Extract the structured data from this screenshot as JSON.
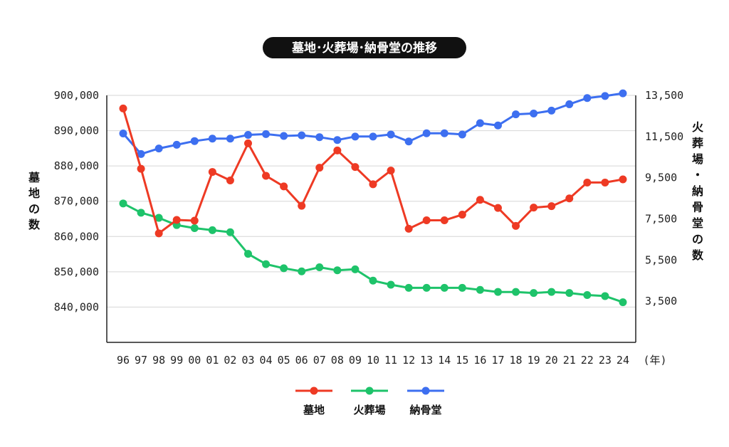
{
  "chart_data": {
    "type": "line",
    "title": "墓地･火葬場･納骨堂の推移",
    "xlabel": "(年)",
    "ylabel_left": "墓地の数",
    "ylabel_right": "火葬場・納骨堂の数",
    "categories": [
      "96",
      "97",
      "98",
      "99",
      "00",
      "01",
      "02",
      "03",
      "04",
      "05",
      "06",
      "07",
      "08",
      "09",
      "10",
      "11",
      "12",
      "13",
      "14",
      "15",
      "16",
      "17",
      "18",
      "19",
      "20",
      "21",
      "22",
      "23",
      "24"
    ],
    "y_left": {
      "ticks": [
        840000,
        850000,
        860000,
        870000,
        880000,
        890000,
        900000
      ],
      "tick_labels": [
        "840,000",
        "850,000",
        "860,000",
        "870,000",
        "880,000",
        "890,000",
        "900,000"
      ],
      "range": [
        830000,
        900000
      ]
    },
    "y_right": {
      "ticks": [
        3500,
        5500,
        7500,
        9500,
        11500,
        13500
      ],
      "tick_labels": [
        "3,500",
        "5,500",
        "7,500",
        "9,500",
        "11,500",
        "13,500"
      ],
      "range": [
        1500,
        13500
      ]
    },
    "grid": true,
    "legend_position": "bottom",
    "series": [
      {
        "name": "墓地",
        "axis": "left",
        "color": "#ee3a24",
        "values": [
          896300,
          879200,
          860900,
          864700,
          864500,
          878300,
          875900,
          886400,
          877200,
          874200,
          868700,
          879500,
          884400,
          879700,
          874800,
          878700,
          862200,
          864600,
          864600,
          866200,
          870400,
          868100,
          863000,
          868200,
          868600,
          870800,
          875300,
          875300,
          876200
        ]
      },
      {
        "name": "火葬場",
        "axis": "right",
        "color": "#1ec36a",
        "values": [
          8250,
          7800,
          7550,
          7200,
          7050,
          6950,
          6850,
          5800,
          5300,
          5100,
          4950,
          5150,
          5000,
          5050,
          4500,
          4300,
          4150,
          4150,
          4150,
          4150,
          4050,
          3950,
          3950,
          3900,
          3950,
          3900,
          3800,
          3750,
          3450
        ]
      },
      {
        "name": "納骨堂",
        "axis": "right",
        "color": "#3d6ff0",
        "values": [
          11650,
          10650,
          10920,
          11100,
          11280,
          11400,
          11400,
          11580,
          11620,
          11530,
          11560,
          11470,
          11330,
          11500,
          11500,
          11600,
          11260,
          11660,
          11660,
          11600,
          12150,
          12040,
          12580,
          12620,
          12760,
          13070,
          13370,
          13470,
          13600
        ]
      }
    ]
  }
}
